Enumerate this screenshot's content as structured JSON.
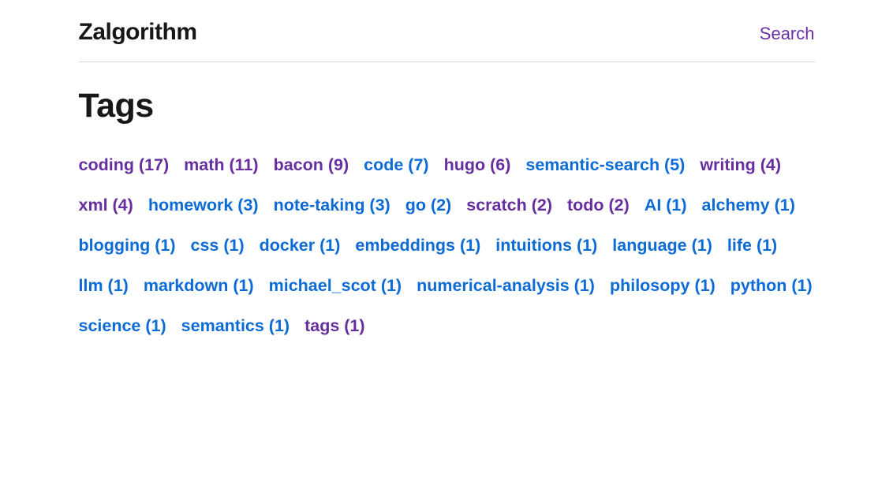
{
  "header": {
    "site_title": "Zalgorithm",
    "search_label": "Search"
  },
  "page": {
    "title": "Tags"
  },
  "colors": {
    "link_blue": "#0c6bd6",
    "link_visited": "#662e9e",
    "search_purple": "#6930aa",
    "text": "#171717",
    "divider": "#dadada",
    "background": "#ffffff"
  },
  "tags": [
    {
      "label": "coding",
      "count": 17,
      "visited": true
    },
    {
      "label": "math",
      "count": 11,
      "visited": true
    },
    {
      "label": "bacon",
      "count": 9,
      "visited": true
    },
    {
      "label": "code",
      "count": 7,
      "visited": false
    },
    {
      "label": "hugo",
      "count": 6,
      "visited": true
    },
    {
      "label": "semantic-search",
      "count": 5,
      "visited": false
    },
    {
      "label": "writing",
      "count": 4,
      "visited": true
    },
    {
      "label": "xml",
      "count": 4,
      "visited": true
    },
    {
      "label": "homework",
      "count": 3,
      "visited": false
    },
    {
      "label": "note-taking",
      "count": 3,
      "visited": false
    },
    {
      "label": "go",
      "count": 2,
      "visited": false
    },
    {
      "label": "scratch",
      "count": 2,
      "visited": true
    },
    {
      "label": "todo",
      "count": 2,
      "visited": true
    },
    {
      "label": "AI",
      "count": 1,
      "visited": false
    },
    {
      "label": "alchemy",
      "count": 1,
      "visited": false
    },
    {
      "label": "blogging",
      "count": 1,
      "visited": false
    },
    {
      "label": "css",
      "count": 1,
      "visited": false
    },
    {
      "label": "docker",
      "count": 1,
      "visited": false
    },
    {
      "label": "embeddings",
      "count": 1,
      "visited": false
    },
    {
      "label": "intuitions",
      "count": 1,
      "visited": false
    },
    {
      "label": "language",
      "count": 1,
      "visited": false
    },
    {
      "label": "life",
      "count": 1,
      "visited": false
    },
    {
      "label": "llm",
      "count": 1,
      "visited": false
    },
    {
      "label": "markdown",
      "count": 1,
      "visited": false
    },
    {
      "label": "michael_scot",
      "count": 1,
      "visited": false
    },
    {
      "label": "numerical-analysis",
      "count": 1,
      "visited": false
    },
    {
      "label": "philosopy",
      "count": 1,
      "visited": false
    },
    {
      "label": "python",
      "count": 1,
      "visited": false
    },
    {
      "label": "science",
      "count": 1,
      "visited": false
    },
    {
      "label": "semantics",
      "count": 1,
      "visited": false
    },
    {
      "label": "tags",
      "count": 1,
      "visited": true
    }
  ]
}
